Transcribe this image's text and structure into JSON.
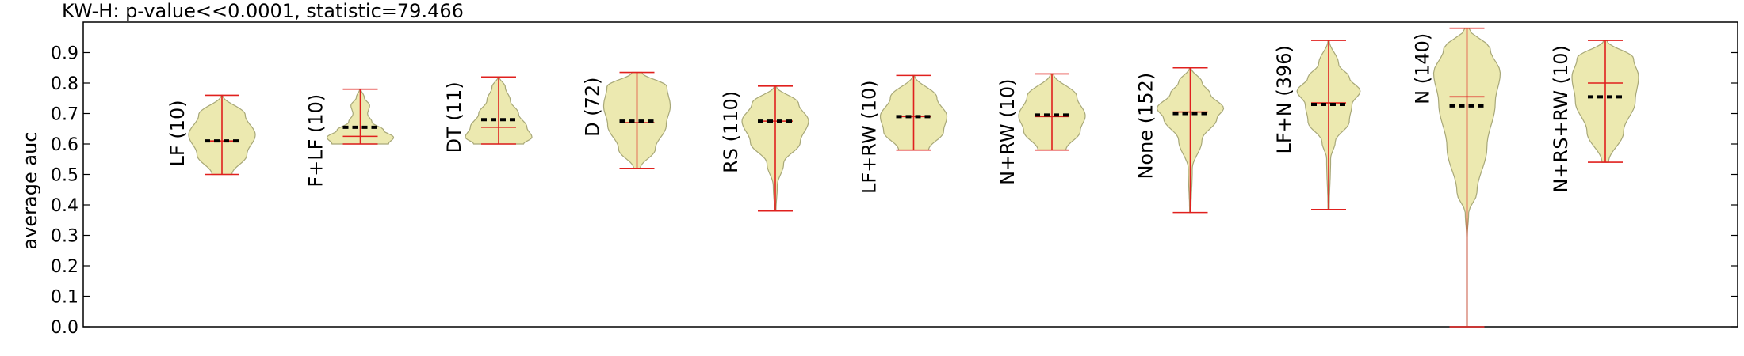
{
  "chart_data": {
    "type": "violin",
    "title": "KW-H: p-value<<0.0001, statistic=79.466",
    "xlabel": "",
    "ylabel": "average auc",
    "ylim": [
      0.0,
      1.0
    ],
    "yticks": [
      "0.0",
      "0.1",
      "0.2",
      "0.3",
      "0.4",
      "0.5",
      "0.6",
      "0.7",
      "0.8",
      "0.9"
    ],
    "grid": false,
    "colors": {
      "violin_fill": "#ece9b0",
      "violin_edge": "#a8a878",
      "whisker": "#e0201e",
      "mean": "#000000"
    },
    "series": [
      {
        "label": "LF (10)",
        "min": 0.5,
        "max": 0.76,
        "median": 0.61,
        "mean": 0.61
      },
      {
        "label": "F+LF (10)",
        "min": 0.6,
        "max": 0.78,
        "median": 0.625,
        "mean": 0.655
      },
      {
        "label": "DT (11)",
        "min": 0.6,
        "max": 0.82,
        "median": 0.655,
        "mean": 0.68
      },
      {
        "label": "D (72)",
        "min": 0.52,
        "max": 0.835,
        "median": 0.67,
        "mean": 0.675
      },
      {
        "label": "RS (110)",
        "min": 0.38,
        "max": 0.79,
        "median": 0.675,
        "mean": 0.675
      },
      {
        "label": "LF+RW (10)",
        "min": 0.58,
        "max": 0.825,
        "median": 0.69,
        "mean": 0.69
      },
      {
        "label": "N+RW (10)",
        "min": 0.58,
        "max": 0.83,
        "median": 0.69,
        "mean": 0.695
      },
      {
        "label": "None (152)",
        "min": 0.375,
        "max": 0.85,
        "median": 0.705,
        "mean": 0.7
      },
      {
        "label": "LF+N (396)",
        "min": 0.385,
        "max": 0.94,
        "median": 0.735,
        "mean": 0.73
      },
      {
        "label": "N (140)",
        "min": 0.0,
        "max": 0.98,
        "median": 0.755,
        "mean": 0.725
      },
      {
        "label": "N+RS+RW (10)",
        "min": 0.54,
        "max": 0.94,
        "median": 0.8,
        "mean": 0.755
      }
    ]
  }
}
